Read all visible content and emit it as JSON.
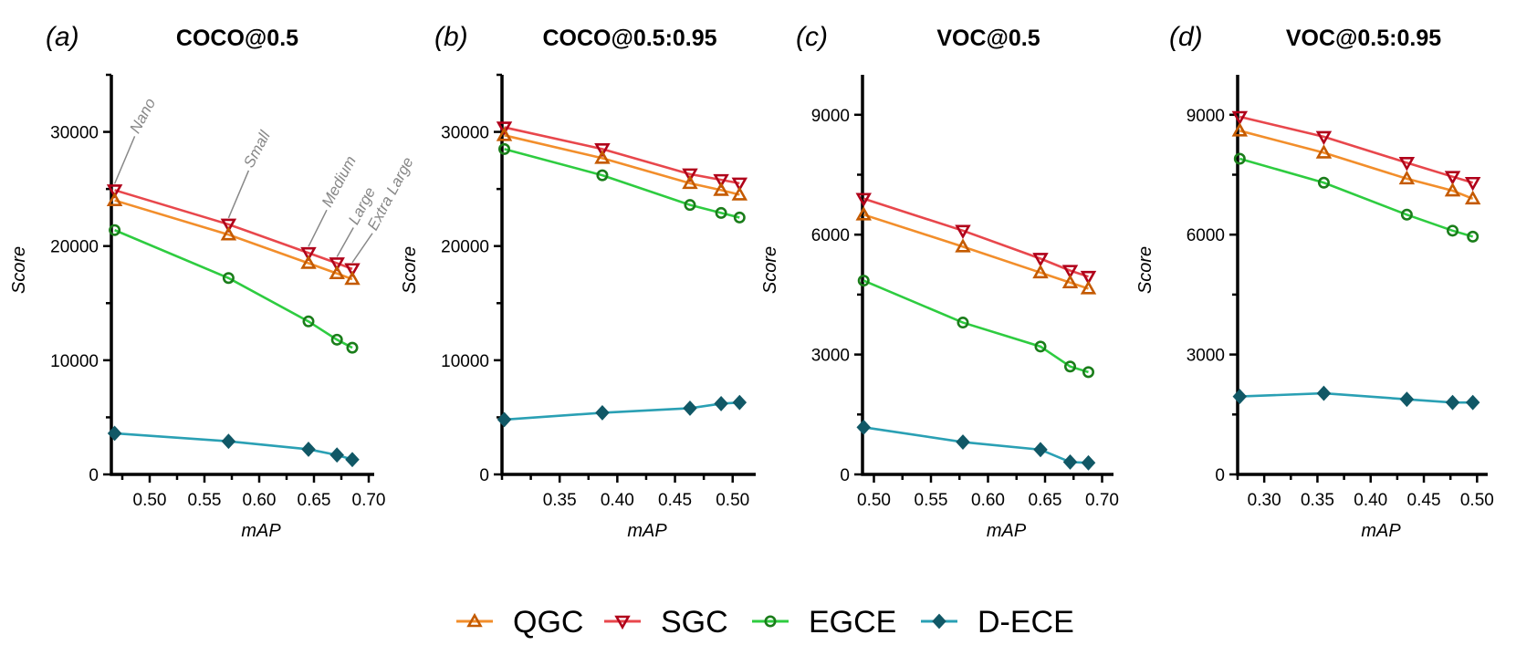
{
  "colors": {
    "QGC": {
      "line": "#f28e2b",
      "marker": "#c45a00"
    },
    "SGC": {
      "line": "#e8474c",
      "marker": "#b0001a"
    },
    "EGCE": {
      "line": "#2ecc40",
      "marker": "#1a7d1a"
    },
    "D-ECE": {
      "line": "#2aa0b4",
      "marker": "#115866"
    }
  },
  "legend": [
    {
      "name": "QGC",
      "marker": "triangle-up-icon"
    },
    {
      "name": "SGC",
      "marker": "triangle-down-icon"
    },
    {
      "name": "EGCE",
      "marker": "circle-icon"
    },
    {
      "name": "D-ECE",
      "marker": "diamond-icon"
    }
  ],
  "chart_data": [
    {
      "type": "line",
      "panel": "(a)",
      "title": "COCO@0.5",
      "xlabel": "mAP",
      "ylabel": "Score",
      "xlim": [
        0.465,
        0.705
      ],
      "ylim": [
        0,
        35000
      ],
      "xticks": [
        0.5,
        0.55,
        0.6,
        0.65,
        0.7
      ],
      "xtick_labels": [
        "0.50",
        "0.55",
        "0.60",
        "0.65",
        "0.70"
      ],
      "yticks": [
        0,
        10000,
        20000,
        30000
      ],
      "ytick_labels": [
        "0",
        "10000",
        "20000",
        "30000"
      ],
      "x": [
        0.468,
        0.572,
        0.645,
        0.671,
        0.685
      ],
      "series": [
        {
          "name": "QGC",
          "values": [
            24000,
            21000,
            18500,
            17600,
            17100
          ]
        },
        {
          "name": "SGC",
          "values": [
            24900,
            21900,
            19400,
            18500,
            18000
          ]
        },
        {
          "name": "EGCE",
          "values": [
            21400,
            17200,
            13400,
            11800,
            11100
          ]
        },
        {
          "name": "D-ECE",
          "values": [
            3600,
            2900,
            2200,
            1700,
            1300
          ]
        }
      ],
      "annotations": [
        "Nano",
        "Small",
        "Medium",
        "Large",
        "Extra Large"
      ]
    },
    {
      "type": "line",
      "panel": "(b)",
      "title": "COCO@0.5:0.95",
      "xlabel": "mAP",
      "ylabel": "Score",
      "xlim": [
        0.3,
        0.52
      ],
      "ylim": [
        0,
        35000
      ],
      "xticks": [
        0.35,
        0.4,
        0.45,
        0.5
      ],
      "xtick_labels": [
        "0.35",
        "0.40",
        "0.45",
        "0.50"
      ],
      "yticks": [
        0,
        10000,
        20000,
        30000
      ],
      "ytick_labels": [
        "0",
        "10000",
        "20000",
        "30000"
      ],
      "x": [
        0.302,
        0.387,
        0.463,
        0.49,
        0.506
      ],
      "series": [
        {
          "name": "QGC",
          "values": [
            29700,
            27700,
            25500,
            24900,
            24500
          ]
        },
        {
          "name": "SGC",
          "values": [
            30400,
            28500,
            26300,
            25800,
            25500
          ]
        },
        {
          "name": "EGCE",
          "values": [
            28500,
            26200,
            23600,
            22900,
            22500
          ]
        },
        {
          "name": "D-ECE",
          "values": [
            4800,
            5400,
            5800,
            6200,
            6300
          ]
        }
      ]
    },
    {
      "type": "line",
      "panel": "(c)",
      "title": "VOC@0.5",
      "xlabel": "mAP",
      "ylabel": "Score",
      "xlim": [
        0.49,
        0.71
      ],
      "ylim": [
        0,
        10000
      ],
      "xticks": [
        0.5,
        0.55,
        0.6,
        0.65,
        0.7
      ],
      "xtick_labels": [
        "0.50",
        "0.55",
        "0.60",
        "0.65",
        "0.70"
      ],
      "yticks": [
        0,
        3000,
        6000,
        9000
      ],
      "ytick_labels": [
        "0",
        "3000",
        "6000",
        "9000"
      ],
      "x": [
        0.491,
        0.578,
        0.646,
        0.672,
        0.688
      ],
      "series": [
        {
          "name": "QGC",
          "values": [
            6500,
            5700,
            5050,
            4800,
            4650
          ]
        },
        {
          "name": "SGC",
          "values": [
            6900,
            6100,
            5400,
            5100,
            4950
          ]
        },
        {
          "name": "EGCE",
          "values": [
            4850,
            3800,
            3200,
            2700,
            2560
          ]
        },
        {
          "name": "D-ECE",
          "values": [
            1180,
            810,
            620,
            310,
            290
          ]
        }
      ]
    },
    {
      "type": "line",
      "panel": "(d)",
      "title": "VOC@0.5:0.95",
      "xlabel": "mAP",
      "ylabel": "Score",
      "xlim": [
        0.275,
        0.51
      ],
      "ylim": [
        0,
        10000
      ],
      "xticks": [
        0.3,
        0.35,
        0.4,
        0.45,
        0.5
      ],
      "xtick_labels": [
        "0.30",
        "0.35",
        "0.40",
        "0.45",
        "0.50"
      ],
      "yticks": [
        0,
        3000,
        6000,
        9000
      ],
      "ytick_labels": [
        "0",
        "3000",
        "6000",
        "9000"
      ],
      "x": [
        0.277,
        0.356,
        0.434,
        0.477,
        0.496
      ],
      "series": [
        {
          "name": "QGC",
          "values": [
            8600,
            8050,
            7400,
            7100,
            6900
          ]
        },
        {
          "name": "SGC",
          "values": [
            8950,
            8450,
            7800,
            7450,
            7300
          ]
        },
        {
          "name": "EGCE",
          "values": [
            7900,
            7300,
            6500,
            6100,
            5950
          ]
        },
        {
          "name": "D-ECE",
          "values": [
            1950,
            2030,
            1880,
            1800,
            1800
          ]
        }
      ]
    }
  ]
}
